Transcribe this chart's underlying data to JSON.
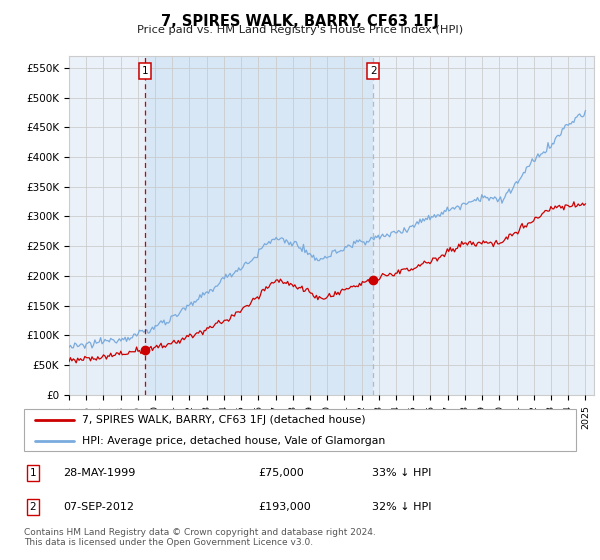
{
  "title": "7, SPIRES WALK, BARRY, CF63 1FJ",
  "subtitle": "Price paid vs. HM Land Registry's House Price Index (HPI)",
  "ylabel_ticks": [
    "£0",
    "£50K",
    "£100K",
    "£150K",
    "£200K",
    "£250K",
    "£300K",
    "£350K",
    "£400K",
    "£450K",
    "£500K",
    "£550K"
  ],
  "ytick_values": [
    0,
    50000,
    100000,
    150000,
    200000,
    250000,
    300000,
    350000,
    400000,
    450000,
    500000,
    550000
  ],
  "ylim": [
    0,
    570000
  ],
  "xlim_start": 1995.0,
  "xlim_end": 2025.5,
  "vline1_x": 1999.42,
  "vline2_x": 2012.67,
  "sale1_date": "28-MAY-1999",
  "sale1_price": "£75,000",
  "sale1_hpi": "33% ↓ HPI",
  "sale2_date": "07-SEP-2012",
  "sale2_price": "£193,000",
  "sale2_hpi": "32% ↓ HPI",
  "legend_line1": "7, SPIRES WALK, BARRY, CF63 1FJ (detached house)",
  "legend_line2": "HPI: Average price, detached house, Vale of Glamorgan",
  "footnote": "Contains HM Land Registry data © Crown copyright and database right 2024.\nThis data is licensed under the Open Government Licence v3.0.",
  "line_red_color": "#cc0000",
  "line_blue_color": "#7aabde",
  "line_blue_fill": "#dce9f5",
  "vline1_color": "#cc0000",
  "vline2_color": "#aabbcc",
  "grid_color": "#cccccc",
  "plot_bg": "#eaf1f8",
  "marker1_x": 1999.42,
  "marker1_y": 75000,
  "marker2_x": 2012.67,
  "marker2_y": 193000,
  "highlight_fill": "#d0e4f5"
}
